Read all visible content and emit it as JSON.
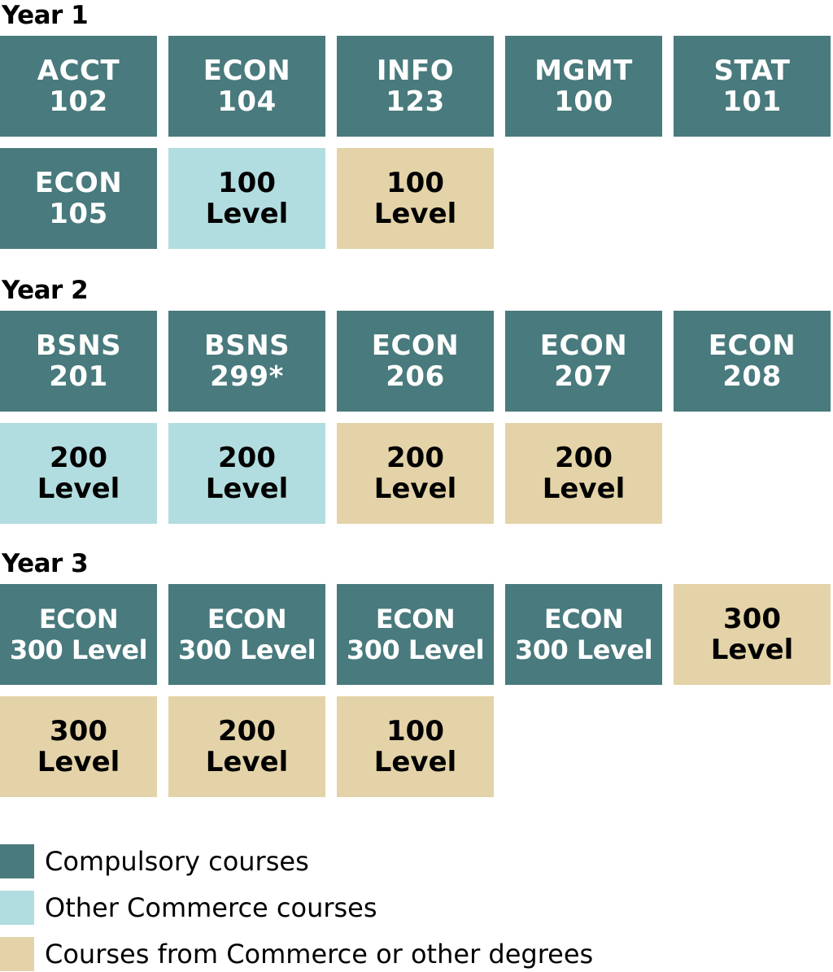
{
  "colors": {
    "compulsory": "#497a7d",
    "commerce": "#b2dde0",
    "other": "#e4d3a8"
  },
  "years": [
    {
      "label": "Year 1",
      "rows": [
        [
          {
            "text": "ACCT\n102",
            "type": "compulsory"
          },
          {
            "text": "ECON\n104",
            "type": "compulsory"
          },
          {
            "text": "INFO\n123",
            "type": "compulsory"
          },
          {
            "text": "MGMT\n100",
            "type": "compulsory"
          },
          {
            "text": "STAT\n101",
            "type": "compulsory"
          }
        ],
        [
          {
            "text": "ECON\n105",
            "type": "compulsory"
          },
          {
            "text": "100\nLevel",
            "type": "commerce"
          },
          {
            "text": "100\nLevel",
            "type": "other"
          }
        ]
      ]
    },
    {
      "label": "Year 2",
      "rows": [
        [
          {
            "text": "BSNS\n201",
            "type": "compulsory"
          },
          {
            "text": "BSNS\n299*",
            "type": "compulsory"
          },
          {
            "text": "ECON\n206",
            "type": "compulsory"
          },
          {
            "text": "ECON\n207",
            "type": "compulsory"
          },
          {
            "text": "ECON\n208",
            "type": "compulsory"
          }
        ],
        [
          {
            "text": "200\nLevel",
            "type": "commerce"
          },
          {
            "text": "200\nLevel",
            "type": "commerce"
          },
          {
            "text": "200\nLevel",
            "type": "other"
          },
          {
            "text": "200\nLevel",
            "type": "other"
          }
        ]
      ]
    },
    {
      "label": "Year 3",
      "rows": [
        [
          {
            "text": "ECON\n300 Level",
            "type": "compulsory"
          },
          {
            "text": "ECON\n300 Level",
            "type": "compulsory"
          },
          {
            "text": "ECON\n300 Level",
            "type": "compulsory"
          },
          {
            "text": "ECON\n300 Level",
            "type": "compulsory"
          },
          {
            "text": "300\nLevel",
            "type": "other"
          }
        ],
        [
          {
            "text": "300\nLevel",
            "type": "other"
          },
          {
            "text": "200\nLevel",
            "type": "other"
          },
          {
            "text": "100\nLevel",
            "type": "other"
          }
        ]
      ]
    }
  ],
  "legend": [
    {
      "label": "Compulsory courses",
      "type": "compulsory"
    },
    {
      "label": "Other Commerce courses",
      "type": "commerce"
    },
    {
      "label": "Courses from Commerce or other degrees",
      "type": "other"
    }
  ]
}
